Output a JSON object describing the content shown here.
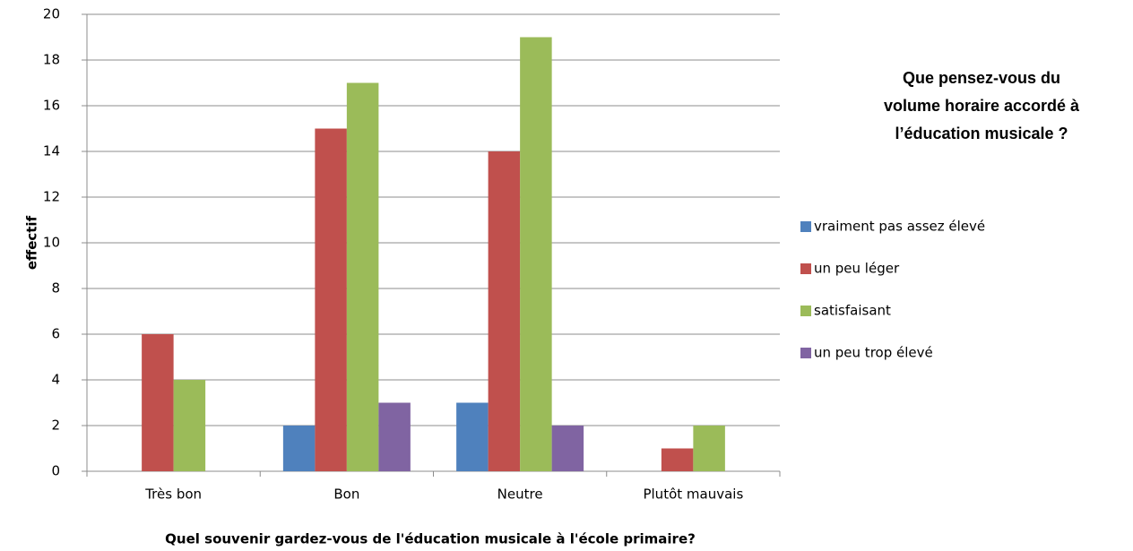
{
  "chart_data": {
    "type": "bar",
    "categories": [
      "Très bon",
      "Bon",
      "Neutre",
      "Plutôt mauvais"
    ],
    "series": [
      {
        "name": "vraiment pas assez élevé",
        "color": "#4f81bd",
        "values": [
          0,
          2,
          3,
          0
        ]
      },
      {
        "name": "un peu léger",
        "color": "#c0504d",
        "values": [
          6,
          15,
          14,
          1
        ]
      },
      {
        "name": "satisfaisant",
        "color": "#9bbb59",
        "values": [
          4,
          17,
          19,
          2
        ]
      },
      {
        "name": "un peu trop élevé",
        "color": "#8064a2",
        "values": [
          0,
          3,
          2,
          0
        ]
      }
    ],
    "ylim": [
      0,
      20
    ],
    "yticks": [
      0,
      2,
      4,
      6,
      8,
      10,
      12,
      14,
      16,
      18,
      20
    ],
    "grid": true,
    "ylabel": "effectif",
    "xlabel": "Quel souvenir gardez-vous de l'éducation musicale à l'école primaire?",
    "legend_title": "Que pensez-vous du volume horaire accordé à l’éducation musicale ?",
    "legend_position": "right"
  }
}
